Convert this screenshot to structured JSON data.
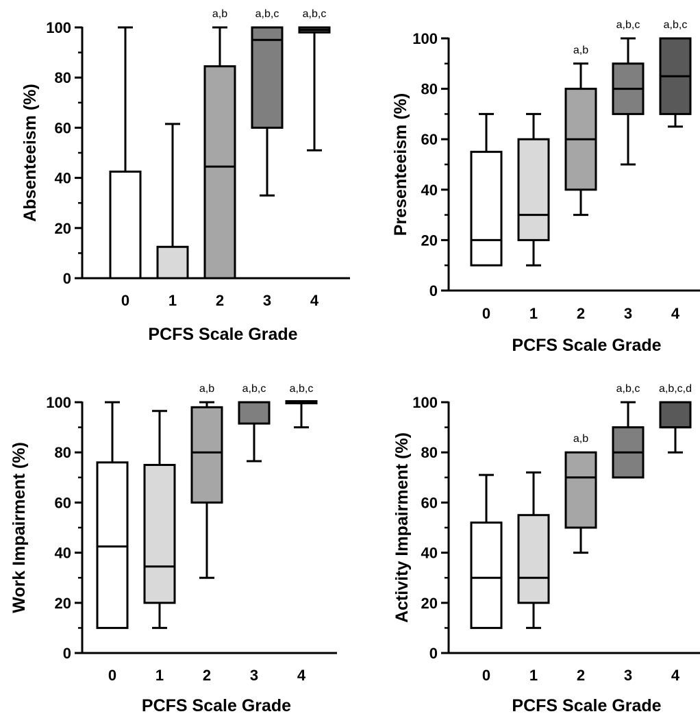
{
  "chart_data": [
    {
      "type": "box",
      "categories": [
        "0",
        "1",
        "2",
        "3",
        "4"
      ],
      "xlabel": "PCFS Scale Grade",
      "ylabel": "Absenteeism (%)",
      "ylim": [
        0,
        100
      ],
      "yticks": [
        0,
        20,
        40,
        60,
        80,
        100
      ],
      "boxes": [
        {
          "min": 0,
          "q1": 0,
          "median": 0,
          "q3": 42.5,
          "max": 100
        },
        {
          "min": 0,
          "q1": 0,
          "median": 0,
          "q3": 12.5,
          "max": 61.5
        },
        {
          "min": 0,
          "q1": 0,
          "median": 44.5,
          "q3": 84.5,
          "max": 100
        },
        {
          "min": 33,
          "q1": 60,
          "median": 95,
          "q3": 100,
          "max": 100
        },
        {
          "min": 51,
          "q1": 98,
          "median": 99,
          "q3": 100,
          "max": 100
        }
      ],
      "annotations": [
        "",
        "",
        "a,b",
        "a,b,c",
        "a,b,c"
      ],
      "fills": [
        "#ffffff",
        "#d9d9d9",
        "#a6a6a6",
        "#7f7f7f",
        "#595959"
      ]
    },
    {
      "type": "box",
      "categories": [
        "0",
        "1",
        "2",
        "3",
        "4"
      ],
      "xlabel": "PCFS Scale Grade",
      "ylabel": "Presenteeism (%)",
      "ylim": [
        0,
        100
      ],
      "yticks": [
        0,
        20,
        40,
        60,
        80,
        100
      ],
      "boxes": [
        {
          "min": 10,
          "q1": 10,
          "median": 20,
          "q3": 55,
          "max": 70
        },
        {
          "min": 10,
          "q1": 20,
          "median": 30,
          "q3": 60,
          "max": 70
        },
        {
          "min": 30,
          "q1": 40,
          "median": 60,
          "q3": 80,
          "max": 90
        },
        {
          "min": 50,
          "q1": 70,
          "median": 80,
          "q3": 90,
          "max": 100
        },
        {
          "min": 65,
          "q1": 70,
          "median": 85,
          "q3": 100,
          "max": 100
        }
      ],
      "annotations": [
        "",
        "",
        "a,b",
        "a,b,c",
        "a,b,c"
      ],
      "fills": [
        "#ffffff",
        "#d9d9d9",
        "#a6a6a6",
        "#7f7f7f",
        "#595959"
      ]
    },
    {
      "type": "box",
      "categories": [
        "0",
        "1",
        "2",
        "3",
        "4"
      ],
      "xlabel": "PCFS Scale Grade",
      "ylabel": "Work Impairment (%)",
      "ylim": [
        0,
        100
      ],
      "yticks": [
        0,
        20,
        40,
        60,
        80,
        100
      ],
      "boxes": [
        {
          "min": 10,
          "q1": 10,
          "median": 42.5,
          "q3": 76,
          "max": 100
        },
        {
          "min": 10,
          "q1": 20,
          "median": 34.5,
          "q3": 75,
          "max": 96.5
        },
        {
          "min": 30,
          "q1": 60,
          "median": 80,
          "q3": 98,
          "max": 100
        },
        {
          "min": 76.5,
          "q1": 91.5,
          "median": 100,
          "q3": 100,
          "max": 100
        },
        {
          "min": 90,
          "q1": 100,
          "median": 100,
          "q3": 100,
          "max": 100
        }
      ],
      "annotations": [
        "",
        "",
        "a,b",
        "a,b,c",
        "a,b,c"
      ],
      "fills": [
        "#ffffff",
        "#d9d9d9",
        "#a6a6a6",
        "#7f7f7f",
        "#595959"
      ]
    },
    {
      "type": "box",
      "categories": [
        "0",
        "1",
        "2",
        "3",
        "4"
      ],
      "xlabel": "PCFS Scale Grade",
      "ylabel": "Activity Impairment (%)",
      "ylim": [
        0,
        100
      ],
      "yticks": [
        0,
        20,
        40,
        60,
        80,
        100
      ],
      "boxes": [
        {
          "min": 10,
          "q1": 10,
          "median": 30,
          "q3": 52,
          "max": 71
        },
        {
          "min": 10,
          "q1": 20,
          "median": 30,
          "q3": 55,
          "max": 72
        },
        {
          "min": 40,
          "q1": 50,
          "median": 70,
          "q3": 80,
          "max": 80
        },
        {
          "min": 70,
          "q1": 70,
          "median": 80,
          "q3": 90,
          "max": 100
        },
        {
          "min": 80,
          "q1": 90,
          "median": 90,
          "q3": 100,
          "max": 100
        }
      ],
      "annotations": [
        "",
        "",
        "a,b",
        "a,b,c",
        "a,b,c,d"
      ],
      "fills": [
        "#ffffff",
        "#d9d9d9",
        "#a6a6a6",
        "#7f7f7f",
        "#595959"
      ]
    }
  ]
}
